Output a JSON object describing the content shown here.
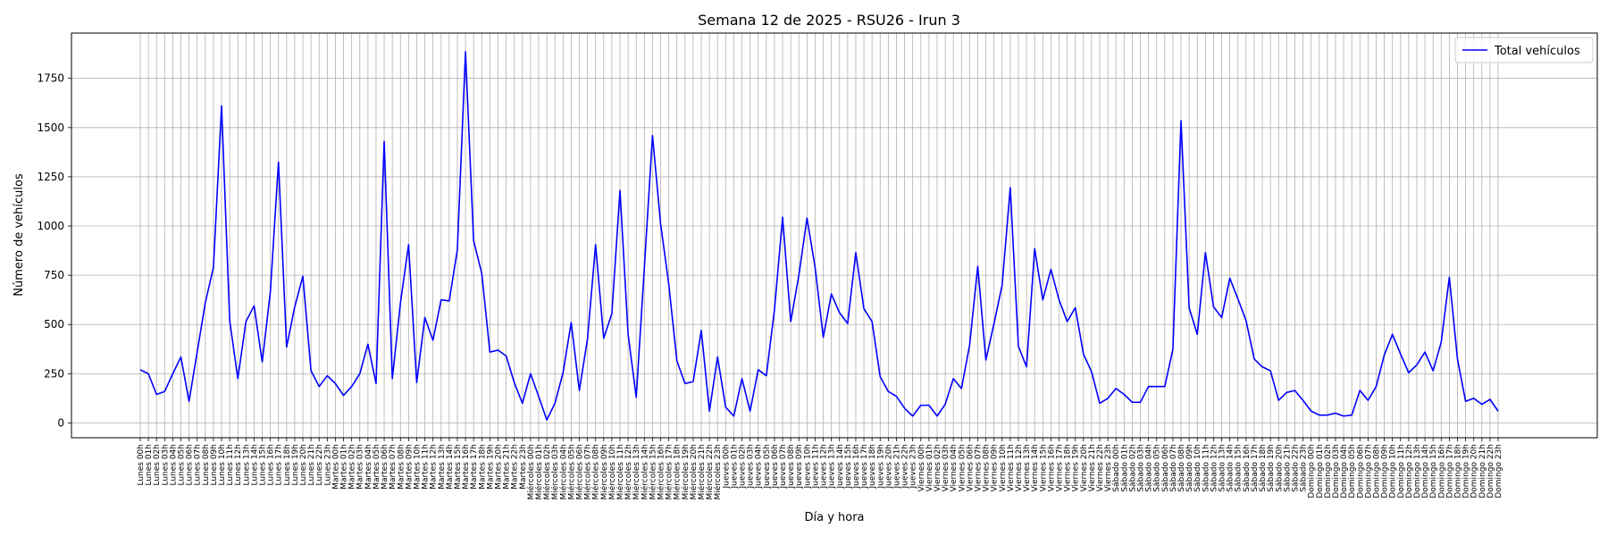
{
  "chart_data": {
    "type": "line",
    "title": "Semana 12 de 2025 - RSU26 - Irun 3",
    "xlabel": "Día y hora",
    "ylabel": "Número de vehículos",
    "ylim": [
      -75,
      1980
    ],
    "yticks": [
      0,
      250,
      500,
      750,
      1000,
      1250,
      1500,
      1750
    ],
    "grid": true,
    "legend_position": "top-right",
    "line_color": "#0000ff",
    "x": [
      "Lunes 00h",
      "Lunes 01h",
      "Lunes 02h",
      "Lunes 03h",
      "Lunes 04h",
      "Lunes 05h",
      "Lunes 06h",
      "Lunes 07h",
      "Lunes 08h",
      "Lunes 09h",
      "Lunes 10h",
      "Lunes 11h",
      "Lunes 12h",
      "Lunes 13h",
      "Lunes 14h",
      "Lunes 15h",
      "Lunes 16h",
      "Lunes 17h",
      "Lunes 18h",
      "Lunes 19h",
      "Lunes 20h",
      "Lunes 21h",
      "Lunes 22h",
      "Lunes 23h",
      "Martes 00h",
      "Martes 01h",
      "Martes 02h",
      "Martes 03h",
      "Martes 04h",
      "Martes 05h",
      "Martes 06h",
      "Martes 07h",
      "Martes 08h",
      "Martes 09h",
      "Martes 10h",
      "Martes 11h",
      "Martes 12h",
      "Martes 13h",
      "Martes 14h",
      "Martes 15h",
      "Martes 16h",
      "Martes 17h",
      "Martes 18h",
      "Martes 19h",
      "Martes 20h",
      "Martes 21h",
      "Martes 22h",
      "Martes 23h",
      "Miércoles 00h",
      "Miércoles 01h",
      "Miércoles 02h",
      "Miércoles 03h",
      "Miércoles 04h",
      "Miércoles 05h",
      "Miércoles 06h",
      "Miércoles 07h",
      "Miércoles 08h",
      "Miércoles 09h",
      "Miércoles 10h",
      "Miércoles 11h",
      "Miércoles 12h",
      "Miércoles 13h",
      "Miércoles 14h",
      "Miércoles 15h",
      "Miércoles 16h",
      "Miércoles 17h",
      "Miércoles 18h",
      "Miércoles 19h",
      "Miércoles 20h",
      "Miércoles 21h",
      "Miércoles 22h",
      "Miércoles 23h",
      "Jueves 00h",
      "Jueves 01h",
      "Jueves 02h",
      "Jueves 03h",
      "Jueves 04h",
      "Jueves 05h",
      "Jueves 06h",
      "Jueves 07h",
      "Jueves 08h",
      "Jueves 09h",
      "Jueves 10h",
      "Jueves 11h",
      "Jueves 12h",
      "Jueves 13h",
      "Jueves 14h",
      "Jueves 15h",
      "Jueves 16h",
      "Jueves 17h",
      "Jueves 18h",
      "Jueves 19h",
      "Jueves 20h",
      "Jueves 21h",
      "Jueves 22h",
      "Jueves 23h",
      "Viernes 00h",
      "Viernes 01h",
      "Viernes 02h",
      "Viernes 03h",
      "Viernes 04h",
      "Viernes 05h",
      "Viernes 06h",
      "Viernes 07h",
      "Viernes 08h",
      "Viernes 09h",
      "Viernes 10h",
      "Viernes 11h",
      "Viernes 12h",
      "Viernes 13h",
      "Viernes 14h",
      "Viernes 15h",
      "Viernes 16h",
      "Viernes 17h",
      "Viernes 18h",
      "Viernes 19h",
      "Viernes 20h",
      "Viernes 21h",
      "Viernes 22h",
      "Viernes 23h",
      "Sábado 00h",
      "Sábado 01h",
      "Sábado 02h",
      "Sábado 03h",
      "Sábado 04h",
      "Sábado 05h",
      "Sábado 06h",
      "Sábado 07h",
      "Sábado 08h",
      "Sábado 09h",
      "Sábado 10h",
      "Sábado 11h",
      "Sábado 12h",
      "Sábado 13h",
      "Sábado 14h",
      "Sábado 15h",
      "Sábado 16h",
      "Sábado 17h",
      "Sábado 18h",
      "Sábado 19h",
      "Sábado 20h",
      "Sábado 21h",
      "Sábado 22h",
      "Sábado 23h",
      "Domingo 00h",
      "Domingo 01h",
      "Domingo 02h",
      "Domingo 03h",
      "Domingo 04h",
      "Domingo 05h",
      "Domingo 06h",
      "Domingo 07h",
      "Domingo 08h",
      "Domingo 09h",
      "Domingo 10h",
      "Domingo 11h",
      "Domingo 12h",
      "Domingo 13h",
      "Domingo 14h",
      "Domingo 15h",
      "Domingo 16h",
      "Domingo 17h",
      "Domingo 18h",
      "Domingo 19h",
      "Domingo 20h",
      "Domingo 21h",
      "Domingo 22h",
      "Domingo 23h"
    ],
    "series": [
      {
        "name": "Total vehículos",
        "values": [
          270,
          250,
          145,
          160,
          250,
          335,
          110,
          360,
          610,
          790,
          1610,
          520,
          225,
          515,
          595,
          310,
          665,
          1325,
          385,
          590,
          745,
          265,
          185,
          240,
          200,
          140,
          185,
          250,
          400,
          200,
          1430,
          225,
          610,
          905,
          205,
          535,
          420,
          625,
          620,
          880,
          1885,
          925,
          760,
          360,
          370,
          340,
          205,
          100,
          250,
          135,
          15,
          100,
          255,
          510,
          165,
          425,
          905,
          430,
          555,
          1180,
          450,
          130,
          790,
          1460,
          1010,
          705,
          315,
          200,
          210,
          470,
          60,
          335,
          80,
          35,
          225,
          60,
          270,
          240,
          575,
          1045,
          515,
          750,
          1040,
          790,
          435,
          655,
          560,
          505,
          865,
          580,
          515,
          235,
          160,
          135,
          75,
          35,
          90,
          90,
          35,
          95,
          225,
          175,
          395,
          795,
          320,
          505,
          700,
          1195,
          390,
          285,
          885,
          625,
          780,
          625,
          515,
          585,
          350,
          260,
          100,
          125,
          175,
          145,
          105,
          105,
          185,
          185,
          185,
          375,
          1535,
          585,
          450,
          865,
          590,
          535,
          735,
          630,
          520,
          325,
          285,
          265,
          115,
          155,
          165,
          115,
          60,
          40,
          40,
          50,
          35,
          40,
          165,
          115,
          185,
          345,
          450,
          350,
          255,
          295,
          360,
          265,
          410,
          740,
          325,
          110,
          125,
          95,
          120,
          60
        ]
      }
    ]
  }
}
